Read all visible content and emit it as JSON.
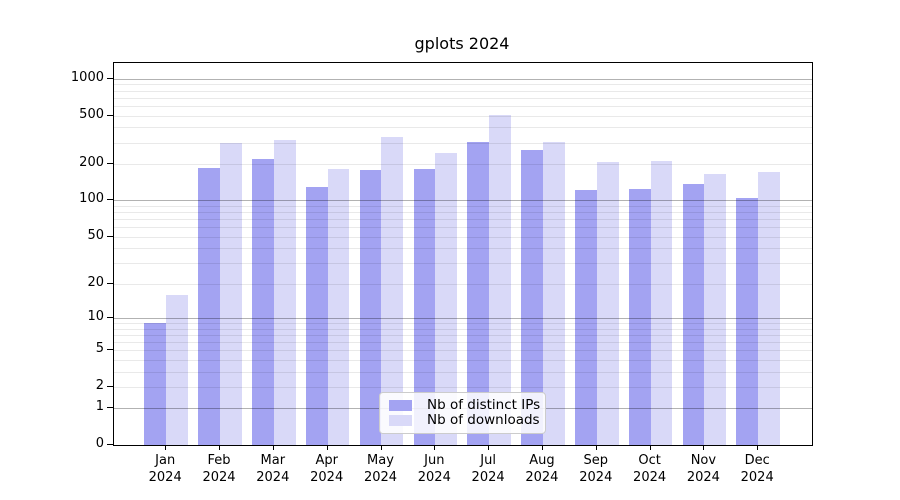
{
  "title": "gplots 2024",
  "colors": {
    "distinct_ips_bar": "#a3a3f2",
    "downloads_bar": "#d9d9f8",
    "major_gridline": "#b3b3b3",
    "minor_gridline": "#e8e8e8",
    "axis": "#000000",
    "legend_border": "#cccccc"
  },
  "axes": {
    "y_tick_labels": [
      "0",
      "1",
      "2",
      "5",
      "10",
      "20",
      "50",
      "100",
      "200",
      "500",
      "1000"
    ],
    "x_months": [
      "Jan",
      "Feb",
      "Mar",
      "Apr",
      "May",
      "Jun",
      "Jul",
      "Aug",
      "Sep",
      "Oct",
      "Nov",
      "Dec"
    ],
    "x_year": "2024"
  },
  "legend": {
    "items": [
      {
        "label": "Nb of distinct IPs",
        "color": "#a3a3f2"
      },
      {
        "label": "Nb of downloads",
        "color": "#d9d9f8"
      }
    ]
  },
  "chart_data": {
    "type": "bar",
    "title": "gplots 2024",
    "categories": [
      "Jan 2024",
      "Feb 2024",
      "Mar 2024",
      "Apr 2024",
      "May 2024",
      "Jun 2024",
      "Jul 2024",
      "Aug 2024",
      "Sep 2024",
      "Oct 2024",
      "Nov 2024",
      "Dec 2024"
    ],
    "series": [
      {
        "name": "Nb of distinct IPs",
        "color": "#a3a3f2",
        "values": [
          9,
          186,
          220,
          130,
          178,
          182,
          302,
          258,
          121,
          125,
          136,
          105
        ]
      },
      {
        "name": "Nb of downloads",
        "color": "#d9d9f8",
        "values": [
          16,
          295,
          315,
          183,
          336,
          247,
          500,
          305,
          206,
          211,
          166,
          172
        ]
      }
    ],
    "xlabel": "",
    "ylabel": "",
    "yscale": "log1p",
    "yticks": [
      0,
      1,
      2,
      5,
      10,
      20,
      50,
      100,
      200,
      500,
      1000
    ],
    "ylim": [
      0,
      1347
    ],
    "grid": {
      "orientation": "horizontal",
      "major": [
        1,
        10,
        100,
        1000
      ],
      "minor": [
        2,
        3,
        4,
        5,
        6,
        7,
        8,
        9,
        20,
        30,
        40,
        50,
        60,
        70,
        80,
        90,
        200,
        300,
        400,
        500,
        600,
        700,
        800,
        900
      ]
    },
    "legend_position": "inside lower-center"
  }
}
